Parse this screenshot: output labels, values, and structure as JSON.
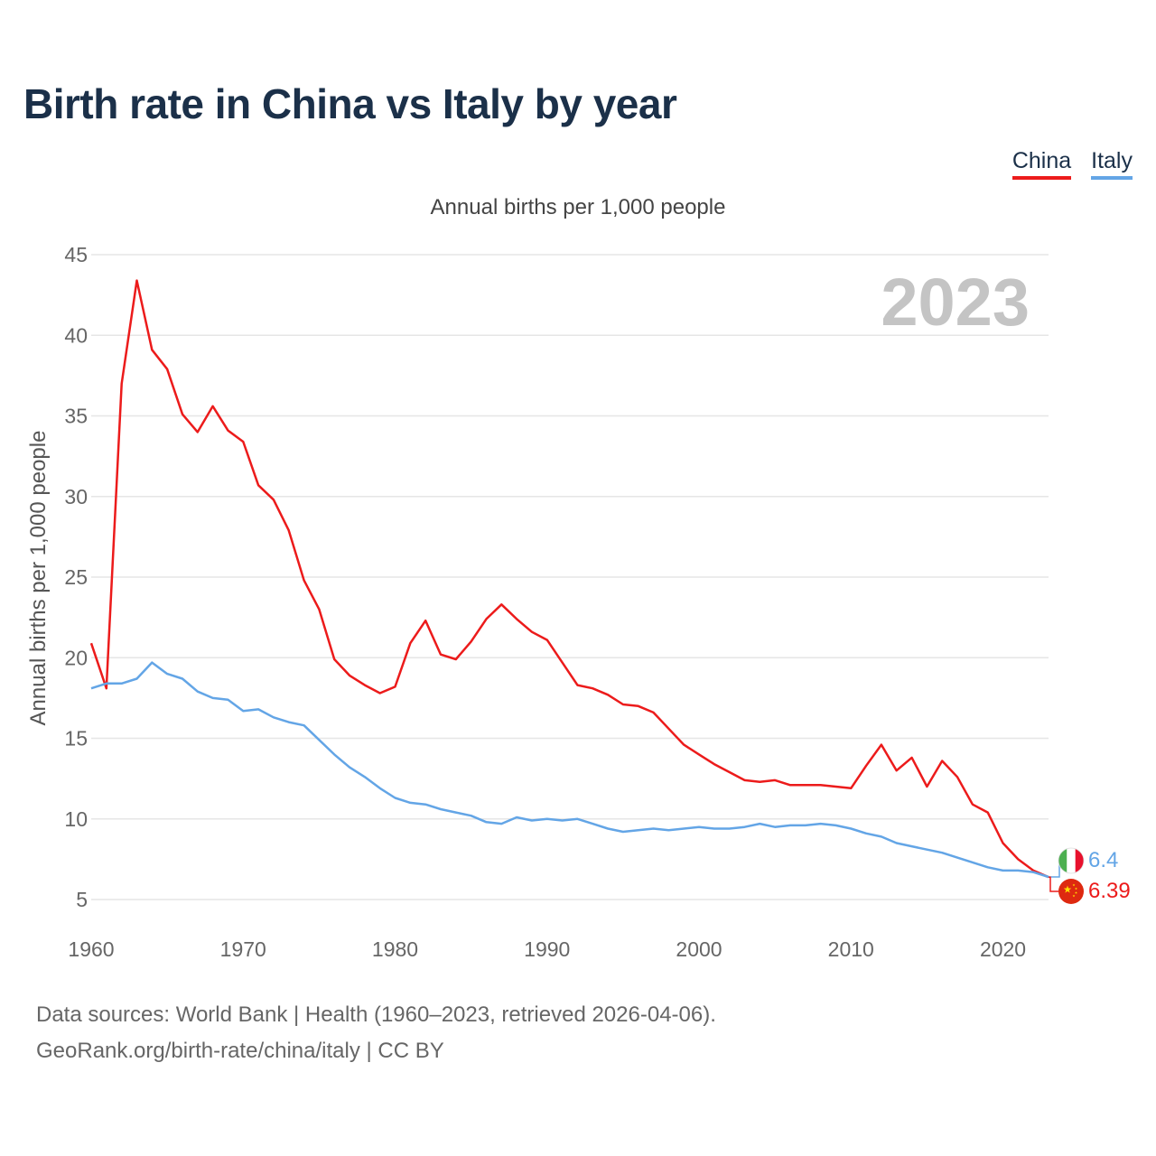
{
  "title": "Birth rate in China vs Italy by year",
  "legend": {
    "china": "China",
    "italy": "Italy"
  },
  "subtitle": "Annual births per 1,000 people",
  "year_watermark": "2023",
  "footer": {
    "line1": "Data sources: World Bank | Health (1960–2023, retrieved 2026-04-06).",
    "line2": "GeoRank.org/birth-rate/china/italy | CC BY"
  },
  "end_labels": {
    "italy": "6.4",
    "china": "6.39"
  },
  "colors": {
    "china": "#ec1b1b",
    "italy": "#63a5e6",
    "grid": "#e6e6e6",
    "axis_text": "#666666",
    "watermark": "#c4c4c4"
  },
  "chart_data": {
    "type": "line",
    "title": "Birth rate in China vs Italy by year",
    "xlabel": "",
    "ylabel": "Annual births per 1,000 people",
    "xlim": [
      1960,
      2023
    ],
    "ylim": [
      5,
      45
    ],
    "xticks": [
      1960,
      1970,
      1980,
      1990,
      2000,
      2010,
      2020
    ],
    "yticks": [
      5,
      10,
      15,
      20,
      25,
      30,
      35,
      40,
      45
    ],
    "x": [
      1960,
      1961,
      1962,
      1963,
      1964,
      1965,
      1966,
      1967,
      1968,
      1969,
      1970,
      1971,
      1972,
      1973,
      1974,
      1975,
      1976,
      1977,
      1978,
      1979,
      1980,
      1981,
      1982,
      1983,
      1984,
      1985,
      1986,
      1987,
      1988,
      1989,
      1990,
      1991,
      1992,
      1993,
      1994,
      1995,
      1996,
      1997,
      1998,
      1999,
      2000,
      2001,
      2002,
      2003,
      2004,
      2005,
      2006,
      2007,
      2008,
      2009,
      2010,
      2011,
      2012,
      2013,
      2014,
      2015,
      2016,
      2017,
      2018,
      2019,
      2020,
      2021,
      2022,
      2023
    ],
    "series": [
      {
        "name": "China",
        "key": "china",
        "values": [
          20.9,
          18.1,
          37.0,
          43.4,
          39.1,
          37.9,
          35.1,
          34.0,
          35.6,
          34.1,
          33.4,
          30.7,
          29.8,
          27.9,
          24.8,
          23.0,
          19.9,
          18.9,
          18.3,
          17.8,
          18.2,
          20.9,
          22.3,
          20.2,
          19.9,
          21.0,
          22.4,
          23.3,
          22.4,
          21.6,
          21.1,
          19.7,
          18.3,
          18.1,
          17.7,
          17.1,
          17.0,
          16.6,
          15.6,
          14.6,
          14.0,
          13.4,
          12.9,
          12.4,
          12.3,
          12.4,
          12.1,
          12.1,
          12.1,
          12.0,
          11.9,
          13.3,
          14.6,
          13.0,
          13.8,
          12.0,
          13.6,
          12.6,
          10.9,
          10.4,
          8.5,
          7.5,
          6.8,
          6.39
        ]
      },
      {
        "name": "Italy",
        "key": "italy",
        "values": [
          18.1,
          18.4,
          18.4,
          18.7,
          19.7,
          19.0,
          18.7,
          17.9,
          17.5,
          17.4,
          16.7,
          16.8,
          16.3,
          16.0,
          15.8,
          14.9,
          14.0,
          13.2,
          12.6,
          11.9,
          11.3,
          11.0,
          10.9,
          10.6,
          10.4,
          10.2,
          9.8,
          9.7,
          10.1,
          9.9,
          10.0,
          9.9,
          10.0,
          9.7,
          9.4,
          9.2,
          9.3,
          9.4,
          9.3,
          9.4,
          9.5,
          9.4,
          9.4,
          9.5,
          9.7,
          9.5,
          9.6,
          9.6,
          9.7,
          9.6,
          9.4,
          9.1,
          8.9,
          8.5,
          8.3,
          8.1,
          7.9,
          7.6,
          7.3,
          7.0,
          6.8,
          6.8,
          6.7,
          6.4
        ]
      }
    ]
  }
}
